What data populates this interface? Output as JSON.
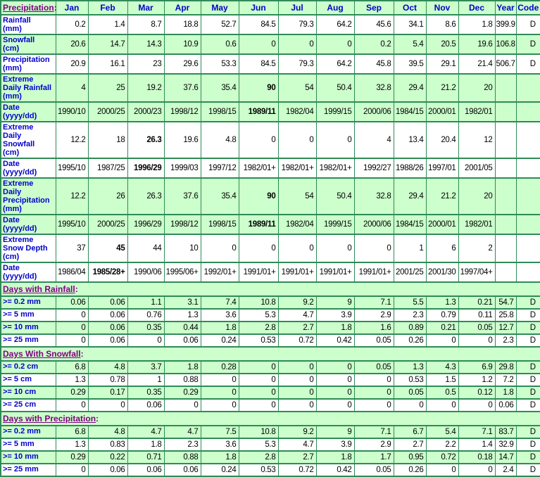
{
  "palette": {
    "cell_green": "#CCFFCC",
    "border_green": "#2E8B57",
    "label_blue": "#0000CC",
    "link_purple": "#800080",
    "value_black": "#000000"
  },
  "table": {
    "corner_label": "Precipitation",
    "columns": [
      "Jan",
      "Feb",
      "Mar",
      "Apr",
      "May",
      "Jun",
      "Jul",
      "Aug",
      "Sep",
      "Oct",
      "Nov",
      "Dec",
      "Year",
      "Code"
    ],
    "rows": [
      {
        "type": "data",
        "key": "rainfall-mm",
        "bg": "white",
        "label_lines": [
          "Rainfall",
          "(mm)"
        ],
        "values": [
          "0.2",
          "1.4",
          "8.7",
          "18.8",
          "52.7",
          "84.5",
          "79.3",
          "64.2",
          "45.6",
          "34.1",
          "8.6",
          "1.8"
        ],
        "year": "399.9",
        "code": "D",
        "bold": []
      },
      {
        "type": "data",
        "key": "snowfall-cm",
        "bg": "green",
        "label_lines": [
          "Snowfall",
          "(cm)"
        ],
        "values": [
          "20.6",
          "14.7",
          "14.3",
          "10.9",
          "0.6",
          "0",
          "0",
          "0",
          "0.2",
          "5.4",
          "20.5",
          "19.6"
        ],
        "year": "106.8",
        "code": "D",
        "bold": []
      },
      {
        "type": "data",
        "key": "precipitation-mm",
        "bg": "white",
        "label_lines": [
          "Precipitation",
          "(mm)"
        ],
        "values": [
          "20.9",
          "16.1",
          "23",
          "29.6",
          "53.3",
          "84.5",
          "79.3",
          "64.2",
          "45.8",
          "39.5",
          "29.1",
          "21.4"
        ],
        "year": "506.7",
        "code": "D",
        "bold": []
      },
      {
        "type": "data",
        "key": "extreme-daily-rainfall",
        "bg": "green",
        "label_lines": [
          "Extreme",
          "Daily Rainfall",
          "(mm)"
        ],
        "values": [
          "4",
          "25",
          "19.2",
          "37.6",
          "35.4",
          "90",
          "54",
          "50.4",
          "32.8",
          "29.4",
          "21.2",
          "20"
        ],
        "year": "",
        "code": "",
        "bold": [
          5
        ]
      },
      {
        "type": "data",
        "key": "date-extreme-daily-rainfall",
        "bg": "green",
        "label_lines": [
          "Date",
          "(yyyy/dd)"
        ],
        "values": [
          "1990/10",
          "2000/25",
          "2000/23",
          "1998/12",
          "1998/15",
          "1989/11",
          "1982/04",
          "1999/15",
          "2000/06",
          "1984/15",
          "2000/01",
          "1982/01"
        ],
        "year": "",
        "code": "",
        "bold": [
          5
        ]
      },
      {
        "type": "data",
        "key": "extreme-daily-snowfall",
        "bg": "white",
        "label_lines": [
          "Extreme",
          "Daily",
          "Snowfall",
          "(cm)"
        ],
        "values": [
          "12.2",
          "18",
          "26.3",
          "19.6",
          "4.8",
          "0",
          "0",
          "0",
          "4",
          "13.4",
          "20.4",
          "12"
        ],
        "year": "",
        "code": "",
        "bold": [
          2
        ]
      },
      {
        "type": "data",
        "key": "date-extreme-daily-snowfall",
        "bg": "white",
        "label_lines": [
          "Date",
          "(yyyy/dd)"
        ],
        "values": [
          "1995/10",
          "1987/25",
          "1996/29",
          "1999/03",
          "1997/12",
          "1982/01+",
          "1982/01+",
          "1982/01+",
          "1992/27",
          "1988/26",
          "1997/01",
          "2001/05"
        ],
        "year": "",
        "code": "",
        "bold": [
          2
        ]
      },
      {
        "type": "data",
        "key": "extreme-daily-precipitation",
        "bg": "green",
        "label_lines": [
          "Extreme",
          "Daily",
          "Precipitation",
          "(mm)"
        ],
        "values": [
          "12.2",
          "26",
          "26.3",
          "37.6",
          "35.4",
          "90",
          "54",
          "50.4",
          "32.8",
          "29.4",
          "21.2",
          "20"
        ],
        "year": "",
        "code": "",
        "bold": [
          5
        ]
      },
      {
        "type": "data",
        "key": "date-extreme-daily-precipitation",
        "bg": "green",
        "label_lines": [
          "Date",
          "(yyyy/dd)"
        ],
        "values": [
          "1995/10",
          "2000/25",
          "1996/29",
          "1998/12",
          "1998/15",
          "1989/11",
          "1982/04",
          "1999/15",
          "2000/06",
          "1984/15",
          "2000/01",
          "1982/01"
        ],
        "year": "",
        "code": "",
        "bold": [
          5
        ]
      },
      {
        "type": "data",
        "key": "extreme-snow-depth",
        "bg": "white",
        "label_lines": [
          "Extreme",
          "Snow Depth",
          "(cm)"
        ],
        "values": [
          "37",
          "45",
          "44",
          "10",
          "0",
          "0",
          "0",
          "0",
          "0",
          "1",
          "6",
          "2"
        ],
        "year": "",
        "code": "",
        "bold": [
          1
        ]
      },
      {
        "type": "data",
        "key": "date-extreme-snow-depth",
        "bg": "white",
        "label_lines": [
          "Date",
          "(yyyy/dd)"
        ],
        "values": [
          "1986/04",
          "1985/28+",
          "1990/06",
          "1995/06+",
          "1992/01+",
          "1991/01+",
          "1991/01+",
          "1991/01+",
          "1991/01+",
          "2001/25",
          "2001/30",
          "1997/04+"
        ],
        "year": "",
        "code": "",
        "bold": [
          1
        ]
      },
      {
        "type": "section",
        "key": "days-with-rainfall",
        "title": "Days with Rainfall"
      },
      {
        "type": "data",
        "key": "rain-ge-0.2mm",
        "bg": "green",
        "label_lines": [
          ">= 0.2 mm"
        ],
        "values": [
          "0.06",
          "0.06",
          "1.1",
          "3.1",
          "7.4",
          "10.8",
          "9.2",
          "9",
          "7.1",
          "5.5",
          "1.3",
          "0.21"
        ],
        "year": "54.7",
        "code": "D",
        "bold": []
      },
      {
        "type": "data",
        "key": "rain-ge-5mm",
        "bg": "white",
        "label_lines": [
          ">= 5 mm"
        ],
        "values": [
          "0",
          "0.06",
          "0.76",
          "1.3",
          "3.6",
          "5.3",
          "4.7",
          "3.9",
          "2.9",
          "2.3",
          "0.79",
          "0.11"
        ],
        "year": "25.8",
        "code": "D",
        "bold": []
      },
      {
        "type": "data",
        "key": "rain-ge-10mm",
        "bg": "green",
        "label_lines": [
          ">= 10 mm"
        ],
        "values": [
          "0",
          "0.06",
          "0.35",
          "0.44",
          "1.8",
          "2.8",
          "2.7",
          "1.8",
          "1.6",
          "0.89",
          "0.21",
          "0.05"
        ],
        "year": "12.7",
        "code": "D",
        "bold": []
      },
      {
        "type": "data",
        "key": "rain-ge-25mm",
        "bg": "white",
        "label_lines": [
          ">= 25 mm"
        ],
        "values": [
          "0",
          "0.06",
          "0",
          "0.06",
          "0.24",
          "0.53",
          "0.72",
          "0.42",
          "0.05",
          "0.26",
          "0",
          "0"
        ],
        "year": "2.3",
        "code": "D",
        "bold": []
      },
      {
        "type": "section",
        "key": "days-with-snowfall",
        "title": "Days With Snowfall"
      },
      {
        "type": "data",
        "key": "snow-ge-0.2cm",
        "bg": "green",
        "label_lines": [
          ">= 0.2 cm"
        ],
        "values": [
          "6.8",
          "4.8",
          "3.7",
          "1.8",
          "0.28",
          "0",
          "0",
          "0",
          "0.05",
          "1.3",
          "4.3",
          "6.9"
        ],
        "year": "29.8",
        "code": "D",
        "bold": []
      },
      {
        "type": "data",
        "key": "snow-ge-5cm",
        "bg": "white",
        "label_lines": [
          ">= 5 cm"
        ],
        "values": [
          "1.3",
          "0.78",
          "1",
          "0.88",
          "0",
          "0",
          "0",
          "0",
          "0",
          "0.53",
          "1.5",
          "1.2"
        ],
        "year": "7.2",
        "code": "D",
        "bold": []
      },
      {
        "type": "data",
        "key": "snow-ge-10cm",
        "bg": "green",
        "label_lines": [
          ">= 10 cm"
        ],
        "values": [
          "0.29",
          "0.17",
          "0.35",
          "0.29",
          "0",
          "0",
          "0",
          "0",
          "0",
          "0.05",
          "0.5",
          "0.12"
        ],
        "year": "1.8",
        "code": "D",
        "bold": []
      },
      {
        "type": "data",
        "key": "snow-ge-25cm",
        "bg": "white",
        "label_lines": [
          ">= 25 cm"
        ],
        "values": [
          "0",
          "0",
          "0.06",
          "0",
          "0",
          "0",
          "0",
          "0",
          "0",
          "0",
          "0",
          "0"
        ],
        "year": "0.06",
        "code": "D",
        "bold": []
      },
      {
        "type": "section",
        "key": "days-with-precipitation",
        "title": "Days with Precipitation"
      },
      {
        "type": "data",
        "key": "precip-ge-0.2mm",
        "bg": "green",
        "label_lines": [
          ">= 0.2 mm"
        ],
        "values": [
          "6.8",
          "4.8",
          "4.7",
          "4.7",
          "7.5",
          "10.8",
          "9.2",
          "9",
          "7.1",
          "6.7",
          "5.4",
          "7.1"
        ],
        "year": "83.7",
        "code": "D",
        "bold": []
      },
      {
        "type": "data",
        "key": "precip-ge-5mm",
        "bg": "white",
        "label_lines": [
          ">= 5 mm"
        ],
        "values": [
          "1.3",
          "0.83",
          "1.8",
          "2.3",
          "3.6",
          "5.3",
          "4.7",
          "3.9",
          "2.9",
          "2.7",
          "2.2",
          "1.4"
        ],
        "year": "32.9",
        "code": "D",
        "bold": []
      },
      {
        "type": "data",
        "key": "precip-ge-10mm",
        "bg": "green",
        "label_lines": [
          ">= 10 mm"
        ],
        "values": [
          "0.29",
          "0.22",
          "0.71",
          "0.88",
          "1.8",
          "2.8",
          "2.7",
          "1.8",
          "1.7",
          "0.95",
          "0.72",
          "0.18"
        ],
        "year": "14.7",
        "code": "D",
        "bold": []
      },
      {
        "type": "data",
        "key": "precip-ge-25mm",
        "bg": "white",
        "label_lines": [
          ">= 25 mm"
        ],
        "values": [
          "0",
          "0.06",
          "0.06",
          "0.06",
          "0.24",
          "0.53",
          "0.72",
          "0.42",
          "0.05",
          "0.26",
          "0",
          "0"
        ],
        "year": "2.4",
        "code": "D",
        "bold": []
      }
    ]
  }
}
